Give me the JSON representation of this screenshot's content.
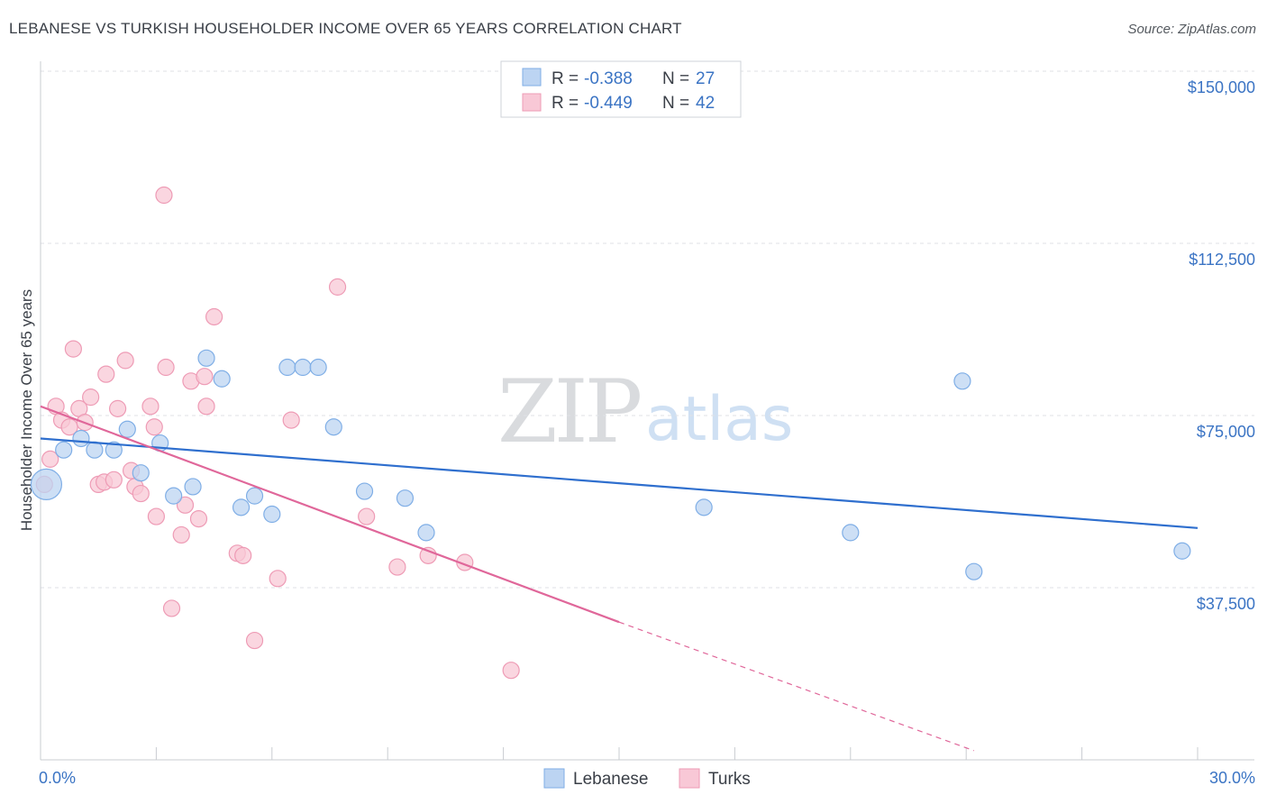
{
  "header": {
    "title": "LEBANESE VS TURKISH HOUSEHOLDER INCOME OVER 65 YEARS CORRELATION CHART",
    "source": "Source: ZipAtlas.com"
  },
  "watermark": {
    "zip": "ZIP",
    "atlas": "atlas"
  },
  "colors": {
    "lebanese_fill": "#bcd4f2",
    "lebanese_stroke": "#7faee6",
    "lebanese_line": "#2f6fce",
    "turks_fill": "#f8c8d6",
    "turks_stroke": "#ee9bb5",
    "turks_line": "#e0679a",
    "tick_label": "#3b74c4",
    "grid": "#dfe2e6"
  },
  "legend": {
    "rows": [
      {
        "r_label": "R = ",
        "r_value": "-0.388",
        "n_label": "N = ",
        "n_value": "27"
      },
      {
        "r_label": "R = ",
        "r_value": "-0.449",
        "n_label": "N = ",
        "n_value": "42"
      }
    ]
  },
  "bottom_legend": {
    "lebanese": "Lebanese",
    "turks": "Turks"
  },
  "chart_data": {
    "type": "scatter",
    "title": "LEBANESE VS TURKISH HOUSEHOLDER INCOME OVER 65 YEARS CORRELATION CHART",
    "xlabel": "",
    "ylabel": "Householder Income Over 65 years",
    "xlim": [
      0,
      30
    ],
    "ylim": [
      0,
      152000
    ],
    "x_tick_labels": [
      "0.0%",
      "30.0%"
    ],
    "y_ticks": [
      37500,
      75000,
      112500,
      150000
    ],
    "y_tick_labels": [
      "$37,500",
      "$75,000",
      "$112,500",
      "$150,000"
    ],
    "grid": true,
    "series": [
      {
        "name": "Lebanese",
        "r": -0.388,
        "n": 27,
        "trend": {
          "x": [
            0,
            30
          ],
          "y": [
            70000,
            50500
          ],
          "dashed_from": null
        },
        "points": [
          {
            "x": 0.15,
            "y": 60000,
            "big": true
          },
          {
            "x": 0.6,
            "y": 67500
          },
          {
            "x": 1.05,
            "y": 70000
          },
          {
            "x": 1.4,
            "y": 67500
          },
          {
            "x": 1.9,
            "y": 67500
          },
          {
            "x": 2.25,
            "y": 72000
          },
          {
            "x": 2.6,
            "y": 62500
          },
          {
            "x": 3.1,
            "y": 69000
          },
          {
            "x": 3.45,
            "y": 57500
          },
          {
            "x": 3.95,
            "y": 59500
          },
          {
            "x": 4.3,
            "y": 87500
          },
          {
            "x": 4.7,
            "y": 83000
          },
          {
            "x": 5.2,
            "y": 55000
          },
          {
            "x": 5.55,
            "y": 57500
          },
          {
            "x": 6.0,
            "y": 53500
          },
          {
            "x": 6.4,
            "y": 85500
          },
          {
            "x": 6.8,
            "y": 85500
          },
          {
            "x": 7.2,
            "y": 85500
          },
          {
            "x": 7.6,
            "y": 72500
          },
          {
            "x": 8.4,
            "y": 58500
          },
          {
            "x": 9.45,
            "y": 57000
          },
          {
            "x": 10.0,
            "y": 49500
          },
          {
            "x": 17.2,
            "y": 55000
          },
          {
            "x": 21.0,
            "y": 49500
          },
          {
            "x": 23.9,
            "y": 82500
          },
          {
            "x": 24.2,
            "y": 41000
          },
          {
            "x": 29.6,
            "y": 45500
          }
        ]
      },
      {
        "name": "Turks",
        "r": -0.449,
        "n": 42,
        "trend": {
          "x": [
            0,
            15
          ],
          "y": [
            77000,
            30000
          ],
          "dashed_from": 15,
          "dashed_to": [
            24.2,
            2000
          ]
        },
        "points": [
          {
            "x": 0.1,
            "y": 60000
          },
          {
            "x": 0.25,
            "y": 65500
          },
          {
            "x": 0.4,
            "y": 77000
          },
          {
            "x": 0.55,
            "y": 74000
          },
          {
            "x": 0.75,
            "y": 72500
          },
          {
            "x": 0.85,
            "y": 89500
          },
          {
            "x": 1.0,
            "y": 76500
          },
          {
            "x": 1.15,
            "y": 73500
          },
          {
            "x": 1.3,
            "y": 79000
          },
          {
            "x": 1.5,
            "y": 60000
          },
          {
            "x": 1.65,
            "y": 60500
          },
          {
            "x": 1.7,
            "y": 84000
          },
          {
            "x": 1.9,
            "y": 61000
          },
          {
            "x": 2.0,
            "y": 76500
          },
          {
            "x": 2.2,
            "y": 87000
          },
          {
            "x": 2.35,
            "y": 63000
          },
          {
            "x": 2.45,
            "y": 59500
          },
          {
            "x": 2.6,
            "y": 58000
          },
          {
            "x": 2.85,
            "y": 77000
          },
          {
            "x": 2.95,
            "y": 72500
          },
          {
            "x": 3.0,
            "y": 53000
          },
          {
            "x": 3.2,
            "y": 123000
          },
          {
            "x": 3.25,
            "y": 85500
          },
          {
            "x": 3.4,
            "y": 33000
          },
          {
            "x": 3.65,
            "y": 49000
          },
          {
            "x": 3.75,
            "y": 55500
          },
          {
            "x": 3.9,
            "y": 82500
          },
          {
            "x": 4.1,
            "y": 52500
          },
          {
            "x": 4.25,
            "y": 83500
          },
          {
            "x": 4.3,
            "y": 77000
          },
          {
            "x": 4.5,
            "y": 96500
          },
          {
            "x": 5.1,
            "y": 45000
          },
          {
            "x": 5.25,
            "y": 44500
          },
          {
            "x": 5.55,
            "y": 26000
          },
          {
            "x": 6.15,
            "y": 39500
          },
          {
            "x": 6.5,
            "y": 74000
          },
          {
            "x": 7.7,
            "y": 103000
          },
          {
            "x": 8.45,
            "y": 53000
          },
          {
            "x": 9.25,
            "y": 42000
          },
          {
            "x": 10.05,
            "y": 44500
          },
          {
            "x": 11.0,
            "y": 43000
          },
          {
            "x": 12.2,
            "y": 19500
          }
        ]
      }
    ]
  }
}
